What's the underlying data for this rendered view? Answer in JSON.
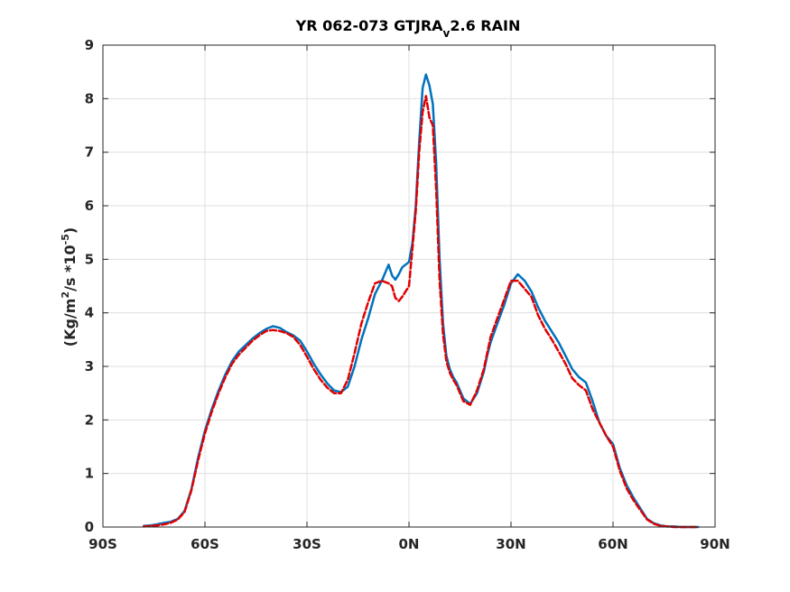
{
  "chart_data": {
    "type": "line",
    "title_main": "YR 062-073 GTJRA",
    "title_sub": "v",
    "title_tail": "2.6 RAIN",
    "ylabel_pre": "(Kg/m",
    "ylabel_sup1": "2",
    "ylabel_mid": "/s   *10",
    "ylabel_sup2": "-5",
    "ylabel_post": ")",
    "xlim": [
      -90,
      90
    ],
    "ylim": [
      0,
      9
    ],
    "xticks": [
      -90,
      -60,
      -30,
      0,
      30,
      60,
      90
    ],
    "xtick_labels": [
      "90S",
      "60S",
      "30S",
      "0N",
      "30N",
      "60N",
      "90N"
    ],
    "yticks": [
      0,
      1,
      2,
      3,
      4,
      5,
      6,
      7,
      8,
      9
    ],
    "ytick_labels": [
      "0",
      "1",
      "2",
      "3",
      "4",
      "5",
      "6",
      "7",
      "8",
      "9"
    ],
    "grid": true,
    "series": [
      {
        "color": "#0072BD",
        "style": "solid",
        "x": [
          -78,
          -76,
          -74,
          -72,
          -70,
          -68,
          -66,
          -64,
          -62,
          -60,
          -58,
          -56,
          -54,
          -52,
          -50,
          -48,
          -46,
          -44,
          -42,
          -40,
          -38,
          -36,
          -34,
          -32,
          -30,
          -28,
          -26,
          -24,
          -22,
          -20,
          -18,
          -16,
          -14,
          -12,
          -10,
          -8,
          -6,
          -5,
          -4,
          -3,
          -2,
          0,
          1,
          2,
          3,
          4,
          5,
          6,
          7,
          8,
          9,
          10,
          11,
          12,
          13,
          14,
          15,
          16,
          18,
          20,
          22,
          23,
          24,
          26,
          28,
          30,
          32,
          34,
          36,
          38,
          40,
          42,
          44,
          46,
          48,
          50,
          52,
          54,
          56,
          58,
          60,
          62,
          64,
          66,
          68,
          70,
          72,
          74,
          76,
          78,
          80,
          82,
          84,
          85
        ],
        "y": [
          0.02,
          0.03,
          0.05,
          0.08,
          0.1,
          0.15,
          0.3,
          0.7,
          1.3,
          1.8,
          2.2,
          2.55,
          2.85,
          3.1,
          3.28,
          3.4,
          3.52,
          3.62,
          3.7,
          3.75,
          3.72,
          3.64,
          3.58,
          3.48,
          3.28,
          3.05,
          2.85,
          2.68,
          2.55,
          2.52,
          2.62,
          3.0,
          3.5,
          3.9,
          4.35,
          4.6,
          4.9,
          4.7,
          4.62,
          4.72,
          4.85,
          4.95,
          5.3,
          6.0,
          7.2,
          8.2,
          8.45,
          8.25,
          7.9,
          6.8,
          5.0,
          3.8,
          3.2,
          2.95,
          2.8,
          2.7,
          2.55,
          2.4,
          2.3,
          2.5,
          2.9,
          3.2,
          3.45,
          3.8,
          4.15,
          4.55,
          4.72,
          4.6,
          4.4,
          4.1,
          3.85,
          3.65,
          3.45,
          3.2,
          2.95,
          2.8,
          2.7,
          2.35,
          1.95,
          1.7,
          1.55,
          1.1,
          0.78,
          0.55,
          0.35,
          0.15,
          0.07,
          0.03,
          0.01,
          0.01,
          0.0,
          0.0,
          0.0,
          0.0
        ]
      },
      {
        "color": "#E00000",
        "style": "dashed",
        "x": [
          -78,
          -76,
          -74,
          -72,
          -70,
          -68,
          -66,
          -64,
          -62,
          -60,
          -58,
          -56,
          -54,
          -52,
          -50,
          -48,
          -46,
          -44,
          -42,
          -40,
          -38,
          -36,
          -34,
          -32,
          -30,
          -28,
          -26,
          -24,
          -22,
          -20,
          -18,
          -16,
          -14,
          -12,
          -10,
          -8,
          -6,
          -5,
          -4,
          -3,
          -2,
          0,
          1,
          2,
          3,
          4,
          5,
          6,
          7,
          8,
          9,
          10,
          11,
          12,
          13,
          14,
          15,
          16,
          18,
          20,
          22,
          23,
          24,
          26,
          28,
          30,
          32,
          34,
          36,
          38,
          40,
          42,
          44,
          46,
          48,
          50,
          52,
          54,
          56,
          58,
          60,
          62,
          64,
          66,
          68,
          70,
          72,
          74,
          76,
          78,
          80,
          82,
          84,
          85
        ],
        "y": [
          0.01,
          0.02,
          0.03,
          0.05,
          0.08,
          0.14,
          0.28,
          0.68,
          1.25,
          1.75,
          2.15,
          2.5,
          2.8,
          3.05,
          3.22,
          3.35,
          3.48,
          3.58,
          3.66,
          3.68,
          3.66,
          3.62,
          3.55,
          3.4,
          3.18,
          2.95,
          2.75,
          2.6,
          2.5,
          2.5,
          2.75,
          3.25,
          3.8,
          4.2,
          4.55,
          4.6,
          4.55,
          4.5,
          4.28,
          4.22,
          4.3,
          4.5,
          5.2,
          5.9,
          7.0,
          7.75,
          8.05,
          7.65,
          7.5,
          6.3,
          4.6,
          3.6,
          3.1,
          2.88,
          2.75,
          2.65,
          2.5,
          2.35,
          2.28,
          2.55,
          2.95,
          3.25,
          3.55,
          3.9,
          4.25,
          4.6,
          4.6,
          4.45,
          4.3,
          3.95,
          3.7,
          3.5,
          3.28,
          3.05,
          2.78,
          2.65,
          2.55,
          2.2,
          1.95,
          1.7,
          1.5,
          1.05,
          0.72,
          0.5,
          0.32,
          0.14,
          0.06,
          0.02,
          0.01,
          0.0,
          0.0,
          0.0,
          0.0,
          0.0
        ]
      }
    ]
  }
}
